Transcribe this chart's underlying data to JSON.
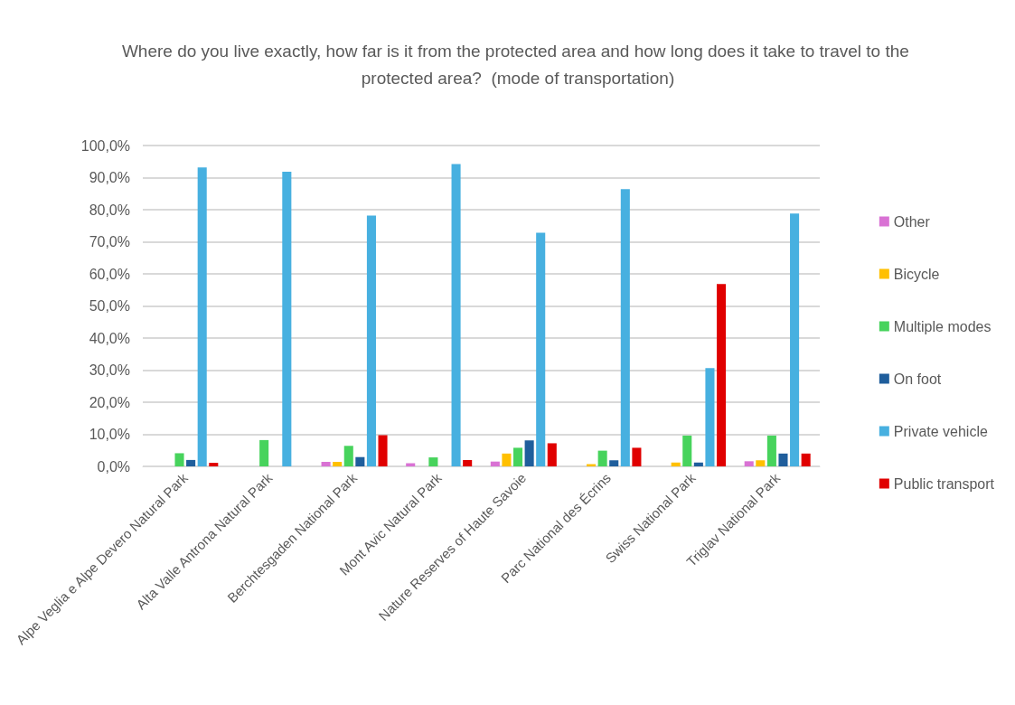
{
  "chart_data": {
    "type": "bar",
    "title": "Where do you live exactly, how far is it from the protected area and how long does it take to travel to the protected area?  (mode of transportation)",
    "categories": [
      "Alpe Veglia e Alpe Devero Natural Park",
      "Alta Valle Antrona Natural Park",
      "Berchtesgaden National Park",
      "Mont Avic Natural Park",
      "Nature Reserves of Haute Savoie",
      "Parc National des Écrins",
      "Swiss National Park",
      "Triglav National Park"
    ],
    "series": [
      {
        "name": "Other",
        "color": "#d972d4",
        "values": [
          0,
          0,
          1.4,
          1.0,
          1.5,
          0,
          0,
          1.6
        ]
      },
      {
        "name": "Bicycle",
        "color": "#ffc000",
        "values": [
          0,
          0,
          1.4,
          0,
          4.0,
          0.7,
          1.2,
          1.9
        ]
      },
      {
        "name": "Multiple modes",
        "color": "#47d35c",
        "values": [
          4.1,
          8.2,
          6.4,
          2.8,
          5.8,
          4.9,
          9.6,
          9.6
        ]
      },
      {
        "name": "On foot",
        "color": "#1f5e9c",
        "values": [
          2.0,
          0,
          2.9,
          0,
          8.1,
          1.9,
          1.2,
          4.0
        ]
      },
      {
        "name": "Private vehicle",
        "color": "#47b0e0",
        "values": [
          93.2,
          91.8,
          78.2,
          94.2,
          72.8,
          86.4,
          30.6,
          78.8
        ]
      },
      {
        "name": "Public transport",
        "color": "#e00000",
        "values": [
          1.1,
          0,
          9.7,
          2.0,
          7.2,
          5.8,
          56.8,
          4.0
        ]
      }
    ],
    "ylim": [
      0,
      100
    ],
    "yticks": [
      {
        "value": 0,
        "label": "0,0%"
      },
      {
        "value": 10,
        "label": "10,0%"
      },
      {
        "value": 20,
        "label": "20,0%"
      },
      {
        "value": 30,
        "label": "30,0%"
      },
      {
        "value": 40,
        "label": "40,0%"
      },
      {
        "value": 50,
        "label": "50,0%"
      },
      {
        "value": 60,
        "label": "60,0%"
      },
      {
        "value": 70,
        "label": "70,0%"
      },
      {
        "value": 80,
        "label": "80,0%"
      },
      {
        "value": 90,
        "label": "90,0%"
      },
      {
        "value": 100,
        "label": "100,0%"
      }
    ],
    "grid": "y",
    "legend": "right"
  }
}
